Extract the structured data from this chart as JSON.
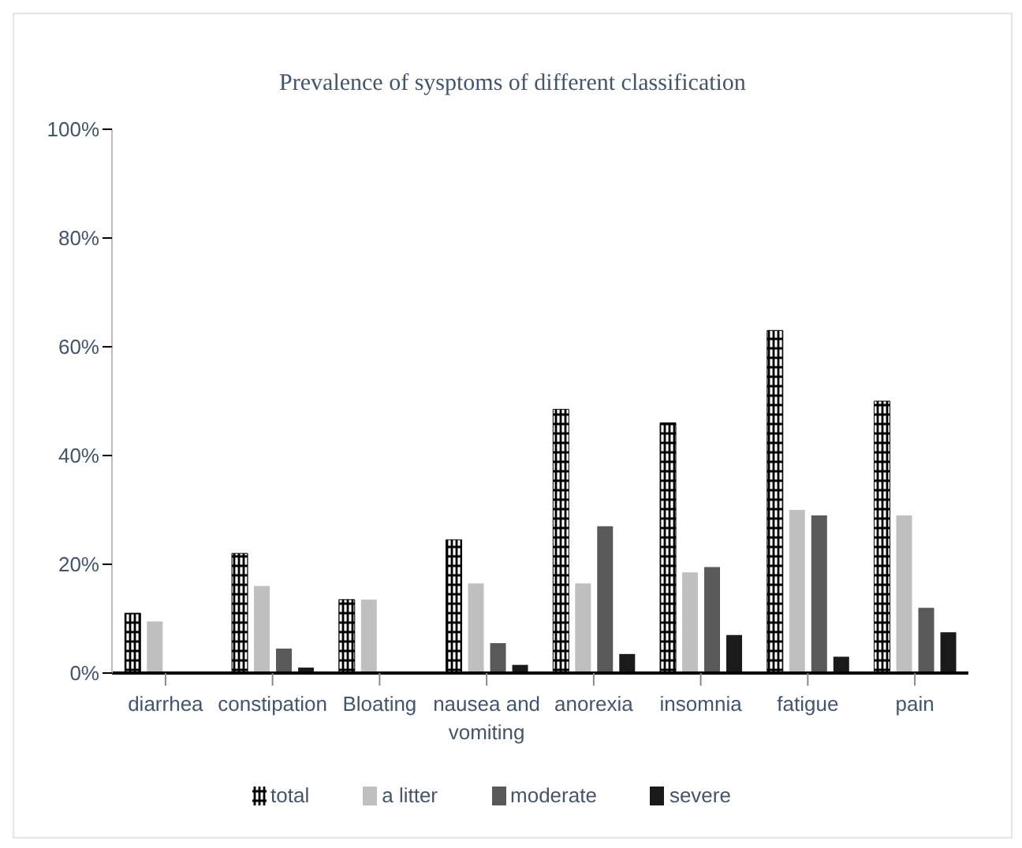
{
  "chart_data": {
    "type": "bar",
    "title": "Prevalence of sysptoms of different classification",
    "categories": [
      "diarrhea",
      "constipation",
      "Bloating",
      "nausea and vomiting",
      "anorexia",
      "insomnia",
      "fatigue",
      "pain"
    ],
    "series": [
      {
        "name": "total",
        "color": "#000000",
        "values": [
          11,
          22,
          13.5,
          24.5,
          48.5,
          46,
          63,
          50
        ]
      },
      {
        "name": "a litter",
        "color": "#bfbfbf",
        "values": [
          9.5,
          16,
          13.5,
          16.5,
          16.5,
          18.5,
          30,
          29
        ]
      },
      {
        "name": "moderate",
        "color": "#595959",
        "values": [
          0,
          4.5,
          0,
          5.5,
          27,
          19.5,
          29,
          12
        ]
      },
      {
        "name": "severe",
        "color": "#1a1a1a",
        "values": [
          0,
          1,
          0,
          1.5,
          3.5,
          7,
          3,
          7.5
        ]
      }
    ],
    "ylim": [
      0,
      100
    ],
    "yticks": [
      {
        "value": 0,
        "label": "0%"
      },
      {
        "value": 20,
        "label": "20%"
      },
      {
        "value": 40,
        "label": "40%"
      },
      {
        "value": 60,
        "label": "60%"
      },
      {
        "value": 80,
        "label": "80%"
      },
      {
        "value": 100,
        "label": "100%"
      }
    ],
    "grid": false,
    "legend": "bottom"
  }
}
